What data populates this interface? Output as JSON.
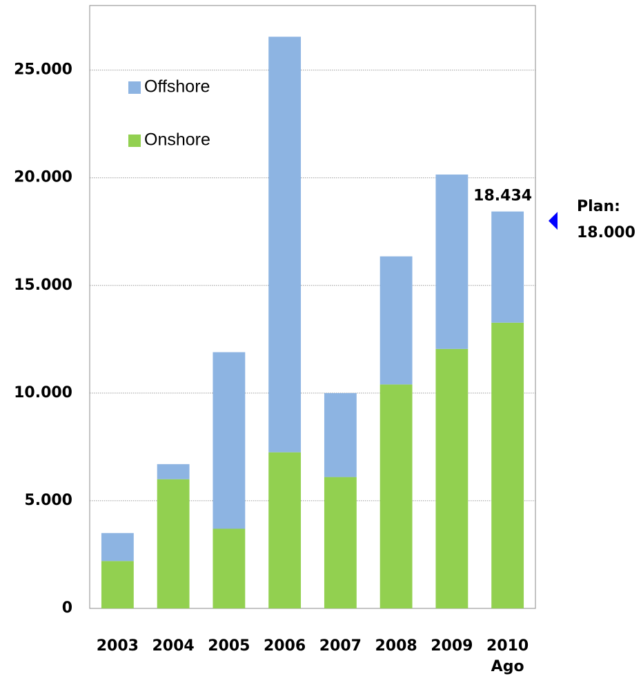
{
  "chart_data": {
    "type": "stacked_bar",
    "categories": [
      "2003",
      "2004",
      "2005",
      "2006",
      "2007",
      "2008",
      "2009",
      "2010"
    ],
    "category_sublabels": [
      null,
      null,
      null,
      null,
      null,
      null,
      null,
      "Ago"
    ],
    "series": [
      {
        "name": "Onshore",
        "color": "#92d050",
        "values": [
          2200,
          6000,
          3700,
          7250,
          6100,
          10400,
          12050,
          13270
        ]
      },
      {
        "name": "Offshore",
        "color": "#8db4e2",
        "values": [
          1300,
          700,
          8200,
          19300,
          3900,
          5950,
          8100,
          5164
        ]
      }
    ],
    "legend_order": [
      1,
      0
    ],
    "legend_position": "upper left",
    "total_annotation": {
      "category": 7,
      "value": 18434,
      "label": "18.434"
    },
    "plan": {
      "value": 18000,
      "label": [
        "Plan:",
        "18.000"
      ],
      "color": "#0000ff"
    },
    "ylim": [
      0,
      28000
    ],
    "yticks": [
      0,
      {
        "value": 5000,
        "label": "5.000"
      },
      {
        "value": 10000,
        "label": "10.000"
      },
      {
        "value": 15000,
        "label": "15.000"
      },
      {
        "value": 20000,
        "label": "20.000"
      },
      {
        "value": 25000,
        "label": "25.000"
      }
    ],
    "grid": true
  }
}
